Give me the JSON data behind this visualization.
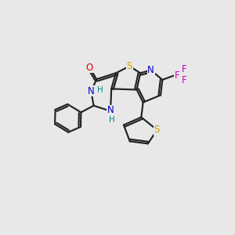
{
  "background_color": "#e8e8e8",
  "atom_colors": {
    "S": "#c8a000",
    "O": "#dd0000",
    "N": "#0000cc",
    "F": "#cc00bb",
    "H": "#008888"
  },
  "bond_color": "#222222",
  "lw": 1.55,
  "figsize": [
    3.0,
    3.0
  ],
  "dpi": 100
}
